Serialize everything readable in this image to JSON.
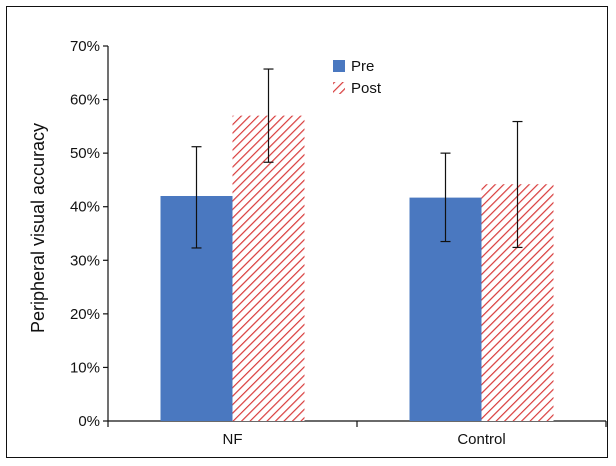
{
  "chart_data": {
    "type": "bar",
    "title": "",
    "xlabel": "",
    "ylabel": "Peripheral visual accuracy",
    "categories": [
      "NF",
      "Control"
    ],
    "ylim": [
      0,
      70
    ],
    "yticks": [
      "0%",
      "10%",
      "20%",
      "30%",
      "40%",
      "50%",
      "60%",
      "70%"
    ],
    "grid": false,
    "legend_position": "top-center",
    "series": [
      {
        "name": "Pre",
        "values": [
          42,
          41.7
        ],
        "error_low": [
          32.3,
          33.5
        ],
        "error_high": [
          51.2,
          50
        ],
        "color": "#4a78c0",
        "pattern": "solid"
      },
      {
        "name": "Post",
        "values": [
          57,
          44.2
        ],
        "error_low": [
          48.3,
          32.4
        ],
        "error_high": [
          65.7,
          55.9
        ],
        "color": "#d83a3a",
        "pattern": "hatched"
      }
    ]
  }
}
